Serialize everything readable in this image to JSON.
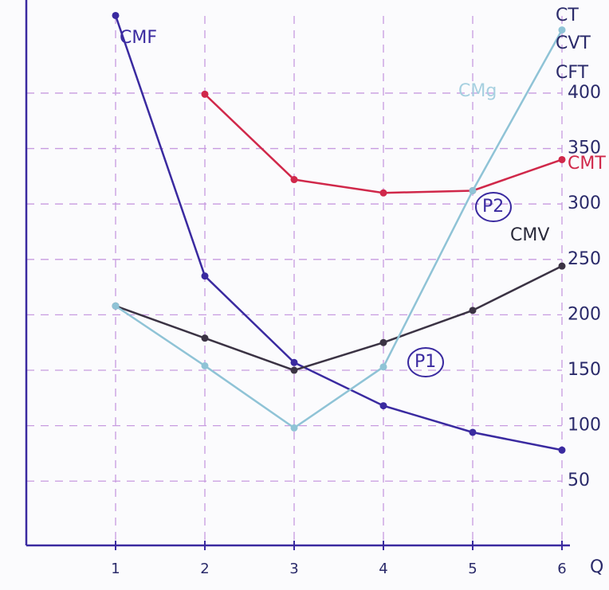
{
  "chart_data": {
    "type": "line",
    "x_label": "Q",
    "annotations": [
      "CMF",
      "CMV",
      "CMT",
      "CMg",
      "P1",
      "P2",
      "CT",
      "CVT",
      "CFT"
    ],
    "x": [
      1,
      2,
      3,
      4,
      5,
      6
    ],
    "xlim": [
      0,
      6.5
    ],
    "xticks": [
      1,
      2,
      3,
      4,
      5,
      6
    ],
    "ylim": [
      -8,
      484
    ],
    "yticks": [
      50,
      100,
      150,
      200,
      250,
      300,
      350,
      400
    ],
    "grid": true,
    "series": [
      {
        "name": "CMF",
        "color": "#3a2aa0",
        "values": [
          470,
          235,
          157,
          118,
          94,
          78
        ]
      },
      {
        "name": "CMT",
        "color": "#d0284a",
        "values": [
          null,
          399,
          322,
          310,
          312,
          340
        ]
      },
      {
        "name": "CMV",
        "color": "#3b3344",
        "values": [
          208,
          179,
          150,
          175,
          204,
          244
        ]
      },
      {
        "name": "CMg",
        "color": "#8fc3d6",
        "values": [
          208,
          154,
          98,
          153,
          312,
          457
        ]
      }
    ]
  }
}
